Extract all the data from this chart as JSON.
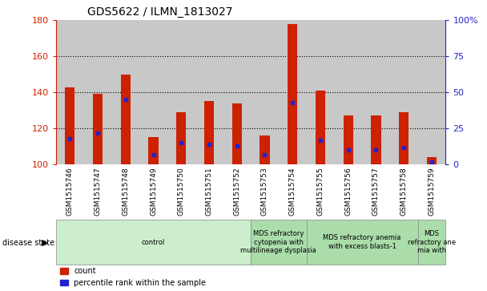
{
  "title": "GDS5622 / ILMN_1813027",
  "samples": [
    "GSM1515746",
    "GSM1515747",
    "GSM1515748",
    "GSM1515749",
    "GSM1515750",
    "GSM1515751",
    "GSM1515752",
    "GSM1515753",
    "GSM1515754",
    "GSM1515755",
    "GSM1515756",
    "GSM1515757",
    "GSM1515758",
    "GSM1515759"
  ],
  "counts": [
    143,
    139,
    150,
    115,
    129,
    135,
    134,
    116,
    178,
    141,
    127,
    127,
    129,
    104
  ],
  "percentile_ranks": [
    18,
    22,
    45,
    7,
    15,
    14,
    13,
    7,
    43,
    17,
    10,
    10,
    12,
    2
  ],
  "ymin": 100,
  "ymax": 180,
  "yticks_left": [
    100,
    120,
    140,
    160,
    180
  ],
  "yticks_right_vals": [
    0,
    25,
    50,
    75,
    100
  ],
  "disease_groups": [
    {
      "label": "control",
      "start": 0,
      "end": 7
    },
    {
      "label": "MDS refractory\ncytopenia with\nmultilineage dysplasia",
      "start": 7,
      "end": 9
    },
    {
      "label": "MDS refractory anemia\nwith excess blasts-1",
      "start": 9,
      "end": 13
    },
    {
      "label": "MDS\nrefractory ane\nmia with",
      "start": 13,
      "end": 14
    }
  ],
  "bar_color": "#cc2200",
  "percentile_color": "#2222cc",
  "sample_bg_color": "#c8c8c8",
  "plot_bg_color": "#ffffff",
  "disease_bg_control": "#cceecc",
  "disease_bg_mds": "#aaddaa",
  "legend_count_color": "#cc2200",
  "legend_pct_color": "#2222cc",
  "bar_width": 0.35
}
